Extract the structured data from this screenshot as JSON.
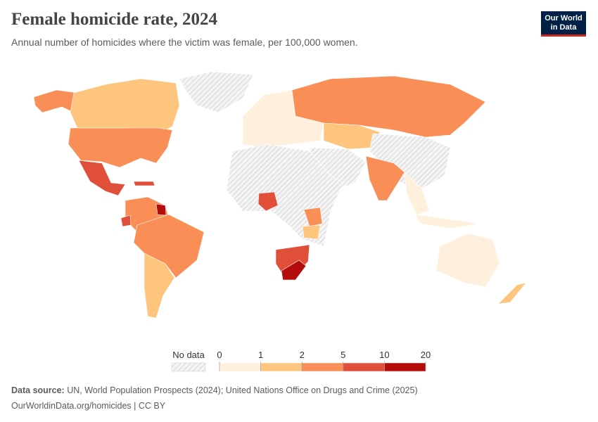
{
  "header": {
    "title": "Female homicide rate, 2024",
    "subtitle": "Annual number of homicides where the victim was female, per 100,000 women."
  },
  "logo": {
    "line1": "Our World",
    "line2": "in Data"
  },
  "legend": {
    "no_data_label": "No data",
    "ticks": [
      0,
      1,
      2,
      5,
      10,
      20
    ],
    "colors": [
      "#fef0dc",
      "#fdc57e",
      "#f98e57",
      "#e04f39",
      "#b40b0b"
    ]
  },
  "footer": {
    "source_label": "Data source:",
    "source_text": "UN, World Population Prospects (2024); United Nations Office on Drugs and Crime (2025)",
    "url_line": "OurWorldinData.org/homicides | CC BY"
  }
}
